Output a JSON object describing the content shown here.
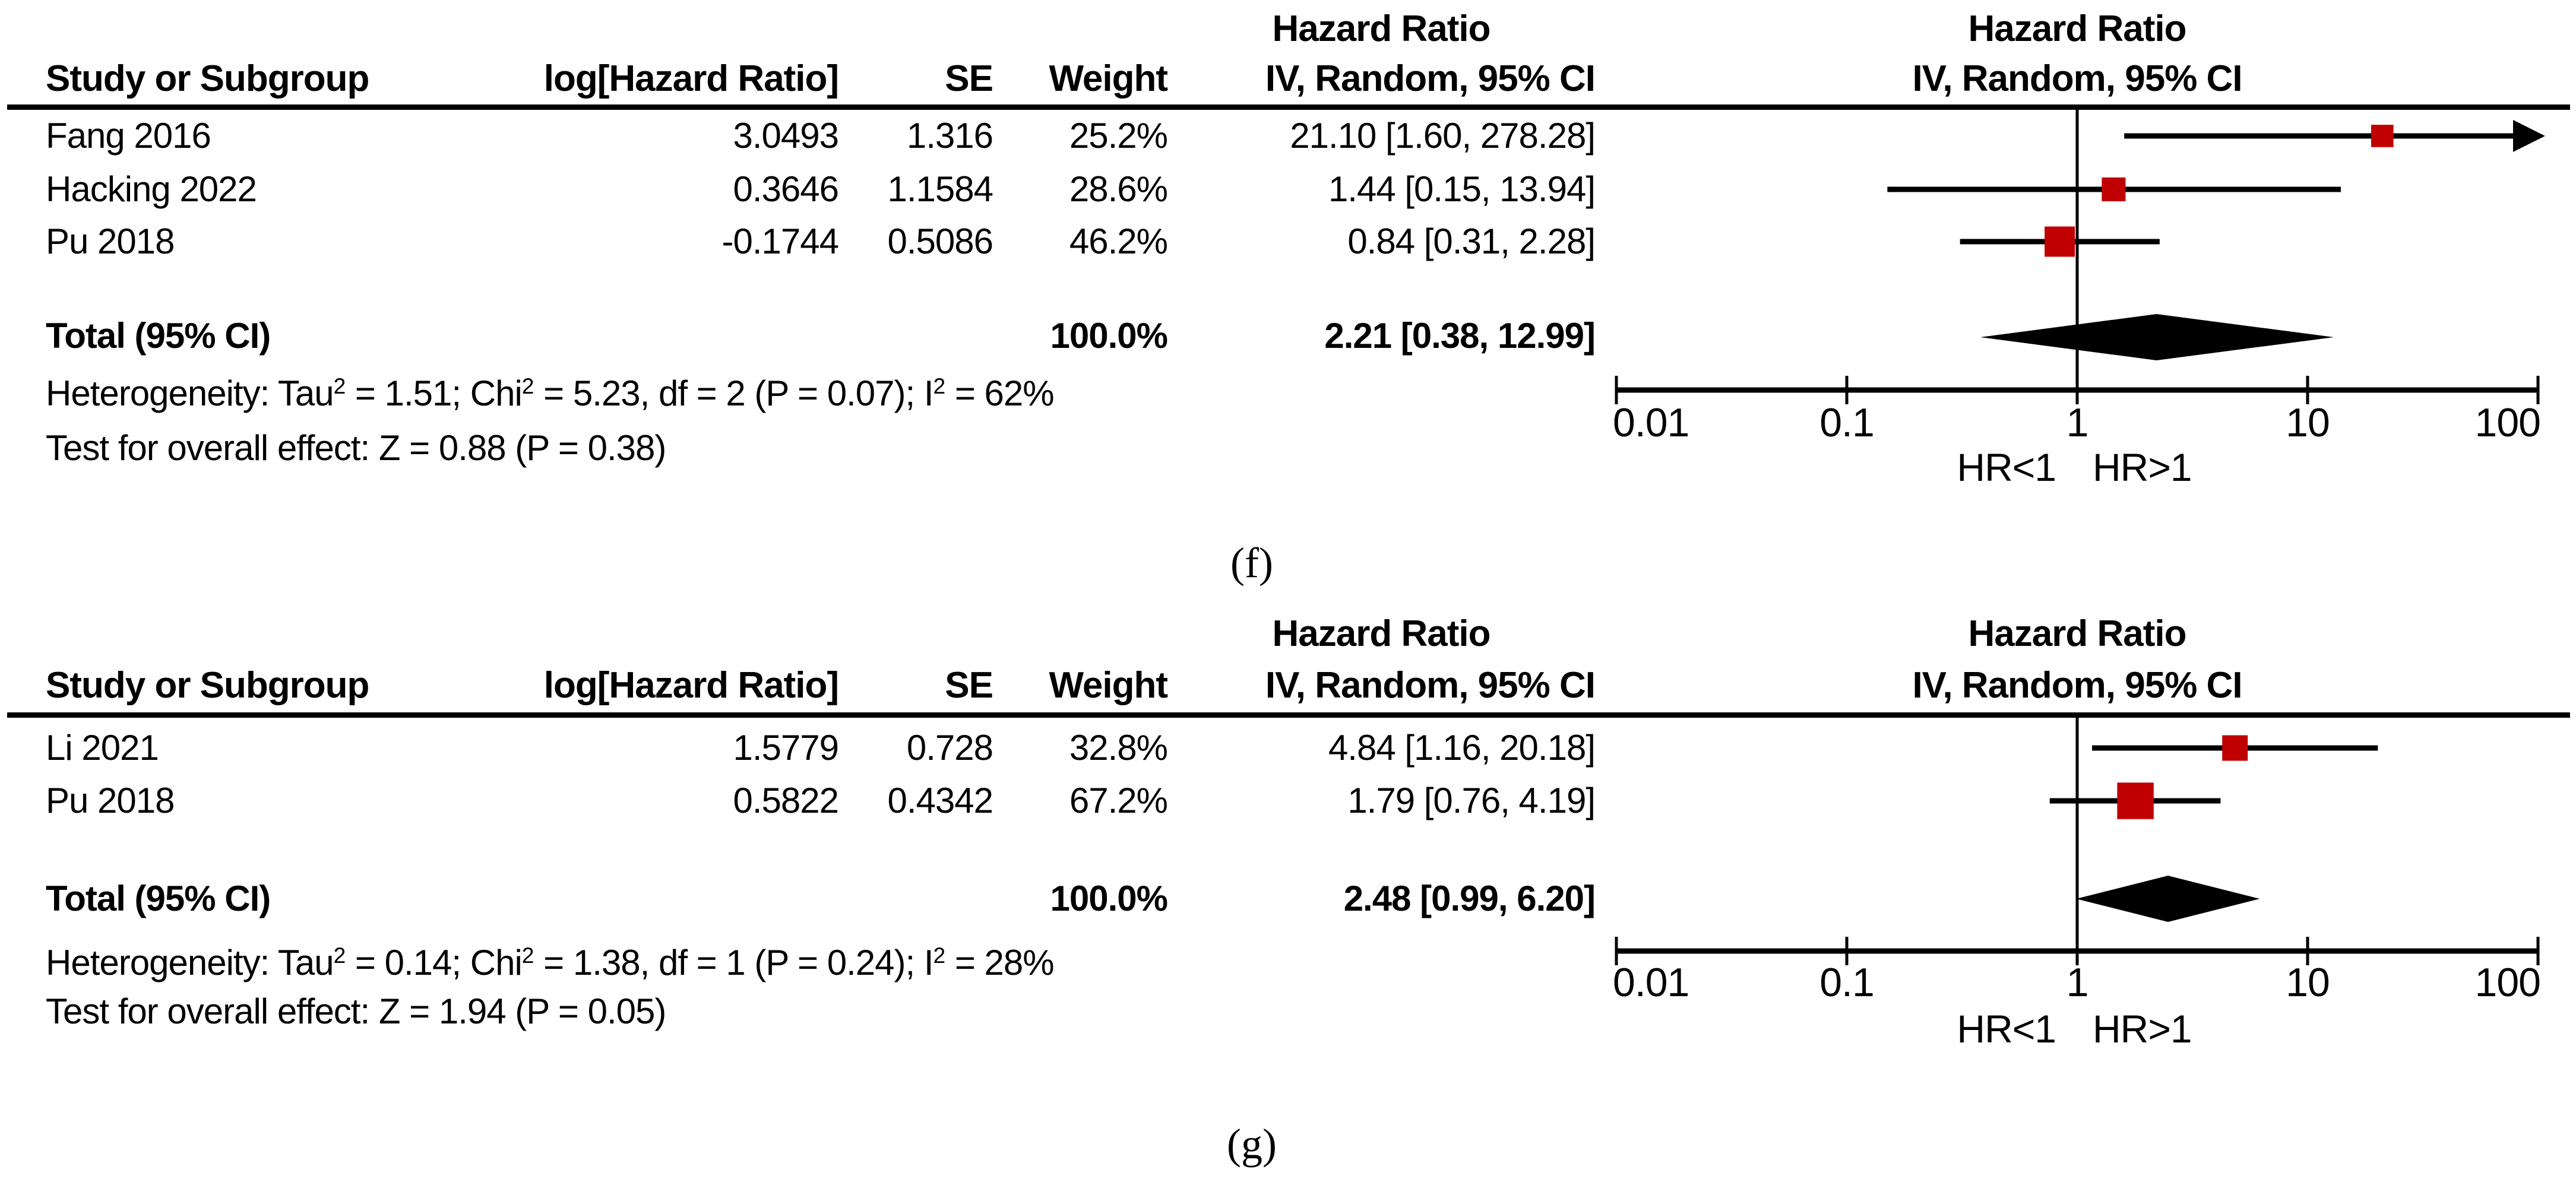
{
  "marker_color": "#c00000",
  "headers": {
    "study": "Study or Subgroup",
    "log_hr": "log[Hazard Ratio]",
    "se": "SE",
    "weight": "Weight",
    "effect": "IV, Random, 95% CI",
    "ratio": "Hazard Ratio"
  },
  "axis": {
    "tick_labels": [
      "0.01",
      "0.1",
      "1",
      "10",
      "100"
    ],
    "caption_left": "HR<1",
    "caption_right": "HR>1"
  },
  "chart_data": [
    {
      "type": "forest",
      "panel_label": "(f)",
      "title": "Hazard Ratio",
      "model": "IV, Random, 95% CI",
      "x_scale": "log10",
      "x_ticks": [
        0.01,
        0.1,
        1,
        10,
        100
      ],
      "x_axis_caption": "HR<1 HR>1",
      "studies": [
        {
          "study": "Fang 2016",
          "log_hr": 3.0493,
          "se": 1.316,
          "weight": "25.2%",
          "weight_pct": 25.2,
          "hr": 21.1,
          "ci_low": 1.6,
          "ci_high": 278.28,
          "ci_text": "21.10 [1.60, 278.28]"
        },
        {
          "study": "Hacking 2022",
          "log_hr": 0.3646,
          "se": 1.1584,
          "weight": "28.6%",
          "weight_pct": 28.6,
          "hr": 1.44,
          "ci_low": 0.15,
          "ci_high": 13.94,
          "ci_text": "1.44 [0.15, 13.94]"
        },
        {
          "study": "Pu 2018",
          "log_hr": -0.1744,
          "se": 0.5086,
          "weight": "46.2%",
          "weight_pct": 46.2,
          "hr": 0.84,
          "ci_low": 0.31,
          "ci_high": 2.28,
          "ci_text": "0.84 [0.31, 2.28]"
        }
      ],
      "total": {
        "label": "Total (95% CI)",
        "weight": "100.0%",
        "hr": 2.21,
        "ci_low": 0.38,
        "ci_high": 12.99,
        "ci_text": "2.21 [0.38, 12.99]"
      },
      "heterogeneity": "Heterogeneity: Tau² = 1.51; Chi² = 5.23, df = 2 (P = 0.07); I² = 62%",
      "overall_effect": "Test for overall effect: Z = 0.88 (P = 0.38)"
    },
    {
      "type": "forest",
      "panel_label": "(g)",
      "title": "Hazard Ratio",
      "model": "IV, Random, 95% CI",
      "x_scale": "log10",
      "x_ticks": [
        0.01,
        0.1,
        1,
        10,
        100
      ],
      "x_axis_caption": "HR<1 HR>1",
      "studies": [
        {
          "study": "Li 2021",
          "log_hr": 1.5779,
          "se": 0.728,
          "weight": "32.8%",
          "weight_pct": 32.8,
          "hr": 4.84,
          "ci_low": 1.16,
          "ci_high": 20.18,
          "ci_text": "4.84 [1.16, 20.18]"
        },
        {
          "study": "Pu 2018",
          "log_hr": 0.5822,
          "se": 0.4342,
          "weight": "67.2%",
          "weight_pct": 67.2,
          "hr": 1.79,
          "ci_low": 0.76,
          "ci_high": 4.19,
          "ci_text": "1.79 [0.76, 4.19]"
        }
      ],
      "total": {
        "label": "Total (95% CI)",
        "weight": "100.0%",
        "hr": 2.48,
        "ci_low": 0.99,
        "ci_high": 6.2,
        "ci_text": "2.48 [0.99, 6.20]"
      },
      "heterogeneity": "Heterogeneity: Tau² = 0.14; Chi² = 1.38, df = 1 (P = 0.24); I² = 28%",
      "overall_effect": "Test for overall effect: Z = 1.94 (P = 0.05)"
    }
  ]
}
